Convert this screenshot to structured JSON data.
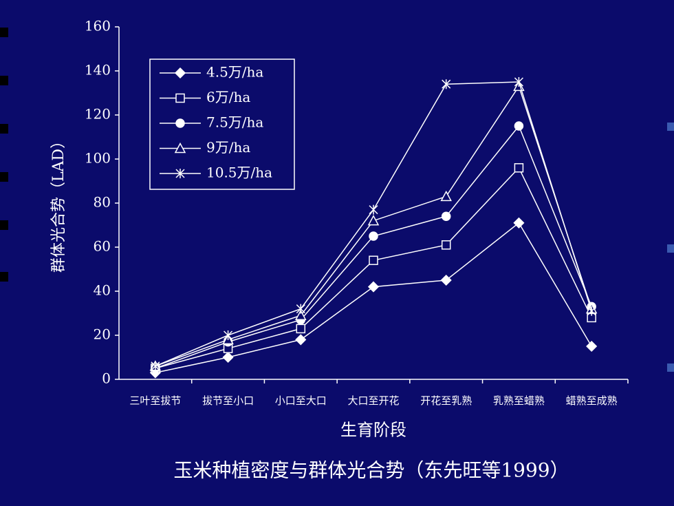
{
  "chart_data": {
    "type": "line",
    "title": "玉米种植密度与群体光合势（东先旺等1999）",
    "x_label": "生育阶段",
    "y_label": "群体光合势（LAD）",
    "categories": [
      "三叶至拔节",
      "拔节至小口",
      "小口至大口",
      "大口至开花",
      "开花至乳熟",
      "乳熟至蜡熟",
      "蜡熟至成熟"
    ],
    "series": [
      {
        "name": "4.5万/ha",
        "color": "#ffffff",
        "marker": "diamond",
        "values": [
          3,
          10,
          18,
          42,
          45,
          71,
          15
        ]
      },
      {
        "name": "6万/ha",
        "color": "#ffffff",
        "marker": "square",
        "values": [
          5,
          14,
          23,
          54,
          61,
          96,
          28
        ]
      },
      {
        "name": "7.5万/ha",
        "color": "#ffffff",
        "marker": "circle",
        "values": [
          5,
          17,
          27,
          65,
          74,
          115,
          33
        ]
      },
      {
        "name": "9万/ha",
        "color": "#ffffff",
        "marker": "triangle",
        "values": [
          6,
          18,
          29,
          72,
          83,
          133,
          32
        ]
      },
      {
        "name": "10.5万/ha",
        "color": "#ffffff",
        "marker": "star",
        "values": [
          6,
          20,
          32,
          77,
          134,
          135,
          31
        ]
      }
    ],
    "ylim": [
      0,
      160
    ],
    "yticks": [
      0,
      20,
      40,
      60,
      80,
      100,
      120,
      140,
      160
    ],
    "grid": false,
    "legend": "upper left"
  }
}
